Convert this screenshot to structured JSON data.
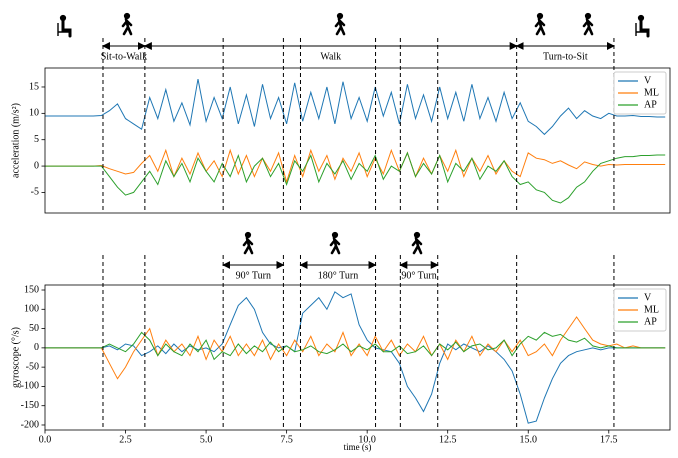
{
  "chart_data": [
    {
      "type": "line",
      "ylabel": "acceleration (m/s²)",
      "annotations": [
        "Sit-to-Walk",
        "Walk",
        "Turn-to-Sit"
      ],
      "vlines": [
        1.8,
        3.1,
        5.53,
        7.4,
        7.93,
        10.26,
        11.03,
        12.19,
        14.64,
        17.66
      ],
      "x": [
        0,
        0.25,
        0.5,
        0.75,
        1,
        1.25,
        1.5,
        1.75,
        2,
        2.25,
        2.5,
        2.75,
        3,
        3.25,
        3.5,
        3.75,
        4,
        4.25,
        4.5,
        4.75,
        5,
        5.25,
        5.5,
        5.75,
        6,
        6.25,
        6.5,
        6.75,
        7,
        7.25,
        7.5,
        7.75,
        8,
        8.25,
        8.5,
        8.75,
        9,
        9.25,
        9.5,
        9.75,
        10,
        10.25,
        10.5,
        10.75,
        11,
        11.25,
        11.5,
        11.75,
        12,
        12.25,
        12.5,
        12.75,
        13,
        13.25,
        13.5,
        13.75,
        14,
        14.25,
        14.5,
        14.75,
        15,
        15.25,
        15.5,
        15.75,
        16,
        16.25,
        16.5,
        16.75,
        17,
        17.25,
        17.5,
        17.75,
        18,
        18.25,
        18.5,
        18.75,
        19,
        19.25
      ],
      "series": [
        {
          "name": "V",
          "color": "#1f77b4",
          "values": [
            9.5,
            9.5,
            9.5,
            9.5,
            9.5,
            9.5,
            9.5,
            9.6,
            10.5,
            11.8,
            9,
            8,
            7,
            13,
            9,
            14.5,
            8.5,
            12,
            7.8,
            16.5,
            8.5,
            13,
            9,
            15,
            8,
            13.5,
            7.5,
            15.5,
            9,
            13,
            8,
            15.8,
            8.5,
            14,
            9,
            15,
            8,
            16,
            9,
            13,
            8.5,
            15,
            9.5,
            14,
            8,
            15.5,
            9,
            13.5,
            8.5,
            15,
            9,
            14,
            8.5,
            15.5,
            9,
            13,
            8.5,
            14,
            9,
            12,
            8.5,
            7.5,
            6,
            7.5,
            9.5,
            11,
            9,
            10.5,
            9.5,
            9,
            10,
            9.5,
            9.5,
            9.6,
            9.4,
            9.4,
            9.3,
            9.3
          ]
        },
        {
          "name": "ML",
          "color": "#ff7f0e",
          "values": [
            0,
            0,
            0,
            0,
            0,
            0,
            0,
            0.1,
            -0.5,
            -1,
            -1.5,
            -1.2,
            0.5,
            2,
            -1,
            3,
            -2,
            1.5,
            -1.5,
            2.5,
            -1,
            1,
            -2,
            3,
            -1.5,
            2,
            -2,
            1.5,
            -1,
            2.5,
            -3,
            2,
            -2,
            3,
            -1,
            2,
            -2.5,
            1.5,
            -1,
            2.5,
            -2,
            1.5,
            -1.5,
            3,
            -1,
            2.5,
            -2,
            1.5,
            -1.5,
            2,
            -1,
            3,
            -2,
            1.5,
            -1,
            2,
            -1.5,
            1,
            -1,
            -2,
            2.5,
            1.5,
            1.2,
            0.5,
            1,
            0.2,
            -0.5,
            0.8,
            0.3,
            0,
            0.3,
            0.2,
            0.3,
            0.3,
            0.3,
            0.3,
            0.3,
            0.3
          ]
        },
        {
          "name": "AP",
          "color": "#2ca02c",
          "values": [
            0,
            0,
            0,
            0,
            0,
            0,
            0,
            0,
            -2,
            -4,
            -5.5,
            -5,
            -3,
            -1,
            -3.5,
            1,
            -2,
            0.5,
            -3,
            1.5,
            -1,
            -3,
            0.5,
            -2,
            2,
            -3,
            0,
            1.5,
            -2,
            0.5,
            -3.5,
            1,
            -1,
            2,
            -3,
            0.5,
            -1.5,
            1,
            -2.5,
            0.5,
            -1,
            2,
            -2.5,
            0,
            -1,
            2.5,
            -2,
            0.5,
            -1.5,
            2,
            -3,
            0.5,
            -1,
            1.5,
            -2.5,
            0,
            -1,
            1,
            -2,
            -3.5,
            -3,
            -4.5,
            -5,
            -6.5,
            -7,
            -6,
            -4,
            -3,
            -1,
            0.5,
            1,
            1.5,
            1.8,
            1.8,
            2,
            2,
            2.1,
            2.1
          ]
        }
      ],
      "xlim": [
        0,
        19.4
      ],
      "ylim": [
        -8.9,
        18.6
      ],
      "yticks": [
        -5,
        0,
        5,
        10,
        15
      ],
      "legend": "upper right"
    },
    {
      "type": "line",
      "ylabel": "gyroscope (°/s)",
      "xlabel": "time (s)",
      "annotations": [
        "90° Turn",
        "180° Turn",
        "90° Turn"
      ],
      "vlines": [
        1.8,
        3.1,
        5.53,
        7.4,
        7.93,
        10.26,
        11.03,
        12.19,
        14.64,
        17.66
      ],
      "x": [
        0,
        0.25,
        0.5,
        0.75,
        1,
        1.25,
        1.5,
        1.75,
        2,
        2.25,
        2.5,
        2.75,
        3,
        3.25,
        3.5,
        3.75,
        4,
        4.25,
        4.5,
        4.75,
        5,
        5.25,
        5.5,
        5.75,
        6,
        6.25,
        6.5,
        6.75,
        7,
        7.25,
        7.5,
        7.75,
        8,
        8.25,
        8.5,
        8.75,
        9,
        9.25,
        9.5,
        9.75,
        10,
        10.25,
        10.5,
        10.75,
        11,
        11.25,
        11.5,
        11.75,
        12,
        12.25,
        12.5,
        12.75,
        13,
        13.25,
        13.5,
        13.75,
        14,
        14.25,
        14.5,
        14.75,
        15,
        15.25,
        15.5,
        15.75,
        16,
        16.25,
        16.5,
        16.75,
        17,
        17.25,
        17.5,
        17.75,
        18,
        18.25,
        18.5,
        18.75,
        19,
        19.25
      ],
      "series": [
        {
          "name": "V",
          "color": "#1f77b4",
          "values": [
            0,
            0,
            0,
            0,
            0,
            0,
            0,
            0,
            5,
            -5,
            10,
            5,
            -20,
            -10,
            5,
            -15,
            10,
            -10,
            5,
            -5,
            0,
            -10,
            10,
            60,
            110,
            130,
            100,
            40,
            10,
            0,
            5,
            -10,
            90,
            110,
            130,
            100,
            145,
            130,
            140,
            60,
            20,
            0,
            -5,
            -10,
            -40,
            -100,
            -130,
            -165,
            -120,
            -40,
            10,
            -5,
            10,
            0,
            -10,
            5,
            -10,
            -30,
            -60,
            -120,
            -195,
            -190,
            -130,
            -80,
            -40,
            -20,
            -10,
            -5,
            0,
            -5,
            0,
            0,
            0,
            0,
            0,
            0,
            0,
            0
          ]
        },
        {
          "name": "ML",
          "color": "#ff7f0e",
          "values": [
            0,
            0,
            0,
            0,
            0,
            0,
            0,
            0,
            -40,
            -80,
            -50,
            -10,
            20,
            50,
            -20,
            20,
            -10,
            10,
            -20,
            30,
            -30,
            20,
            -10,
            30,
            -20,
            10,
            -20,
            20,
            -30,
            10,
            -20,
            20,
            -10,
            30,
            -20,
            10,
            -10,
            40,
            -20,
            10,
            -20,
            30,
            -10,
            20,
            -20,
            10,
            -10,
            30,
            -20,
            10,
            -30,
            20,
            -10,
            30,
            -20,
            10,
            -10,
            20,
            -10,
            20,
            -20,
            -10,
            10,
            -20,
            20,
            50,
            80,
            50,
            20,
            10,
            5,
            10,
            0,
            5,
            0,
            0,
            0,
            0
          ]
        },
        {
          "name": "AP",
          "color": "#2ca02c",
          "values": [
            0,
            0,
            0,
            0,
            0,
            0,
            0,
            0,
            10,
            0,
            -10,
            10,
            40,
            20,
            -20,
            10,
            -10,
            -20,
            10,
            -10,
            20,
            -30,
            -10,
            -20,
            10,
            -15,
            5,
            -10,
            15,
            -10,
            5,
            -10,
            -5,
            5,
            -10,
            -15,
            -5,
            10,
            -10,
            5,
            -5,
            10,
            -10,
            -10,
            5,
            -15,
            -10,
            5,
            -20,
            10,
            -5,
            15,
            -10,
            5,
            10,
            -5,
            0,
            20,
            -20,
            10,
            30,
            20,
            40,
            30,
            35,
            20,
            15,
            25,
            5,
            0,
            5,
            0,
            0,
            0,
            0,
            0,
            0,
            0
          ]
        }
      ],
      "xlim": [
        0,
        19.4
      ],
      "ylim": [
        -213,
        163
      ],
      "xticks": [
        {
          "value": 0,
          "label": "0.0"
        },
        2.5,
        {
          "value": 5,
          "label": "5.0"
        },
        7.5,
        {
          "value": 10,
          "label": "10.0"
        },
        12.5,
        {
          "value": 15,
          "label": "15.0"
        },
        17.5
      ],
      "yticks": [
        -200,
        -150,
        -100,
        -50,
        0,
        50,
        100,
        150
      ],
      "legend": "upper right"
    }
  ]
}
